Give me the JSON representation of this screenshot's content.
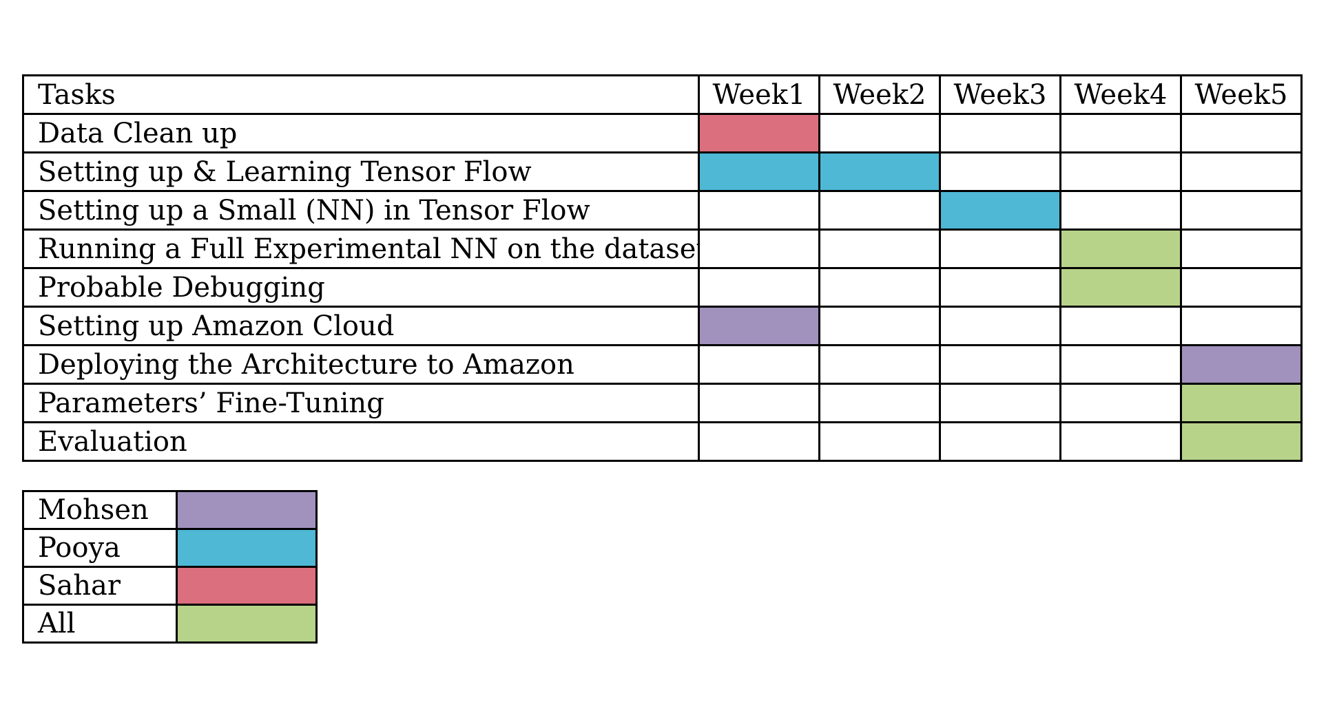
{
  "chart_data": {
    "type": "table",
    "header": {
      "task_label": "Tasks",
      "weeks": [
        "Week1",
        "Week2",
        "Week3",
        "Week4",
        "Week5"
      ]
    },
    "tasks": [
      {
        "name": "Data Clean up",
        "owner": "Sahar",
        "weeks": [
          1
        ]
      },
      {
        "name": "Setting up & Learning Tensor Flow",
        "owner": "Pooya",
        "weeks": [
          1,
          2
        ]
      },
      {
        "name": "Setting up a Small (NN) in Tensor Flow",
        "owner": "Pooya",
        "weeks": [
          3
        ]
      },
      {
        "name": "Running a Full Experimental NN on the dataset",
        "owner": "All",
        "weeks": [
          4
        ]
      },
      {
        "name": "Probable Debugging",
        "owner": "All",
        "weeks": [
          4
        ]
      },
      {
        "name": "Setting up Amazon Cloud",
        "owner": "Mohsen",
        "weeks": [
          1
        ]
      },
      {
        "name": "Deploying the Architecture to Amazon",
        "owner": "Mohsen",
        "weeks": [
          5
        ]
      },
      {
        "name": "Parameters’ Fine-Tuning",
        "owner": "All",
        "weeks": [
          5
        ]
      },
      {
        "name": "Evaluation",
        "owner": "All",
        "weeks": [
          5
        ]
      }
    ],
    "legend": [
      {
        "name": "Mohsen",
        "color": "#a191bd"
      },
      {
        "name": "Pooya",
        "color": "#4eb8d5"
      },
      {
        "name": "Sahar",
        "color": "#db6f7d"
      },
      {
        "name": "All",
        "color": "#b7d38a"
      }
    ]
  }
}
